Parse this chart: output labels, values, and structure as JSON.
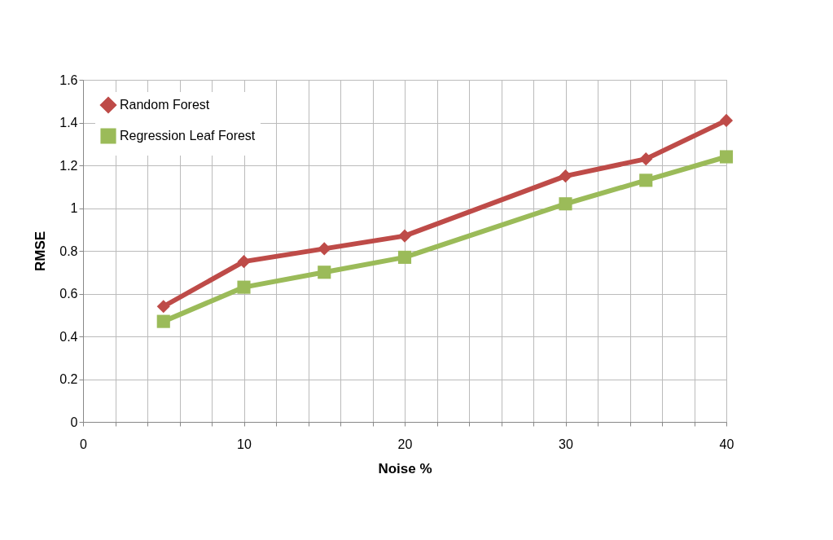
{
  "chart_data": {
    "type": "line",
    "xlabel": "Noise %",
    "ylabel": "RMSE",
    "x": [
      5,
      10,
      15,
      20,
      30,
      35,
      40
    ],
    "series": [
      {
        "name": "Random Forest",
        "color": "#be4b48",
        "marker": "diamond",
        "values": [
          0.54,
          0.75,
          0.81,
          0.87,
          1.15,
          1.23,
          1.41
        ]
      },
      {
        "name": "Regression Leaf Forest",
        "color": "#9bbb59",
        "marker": "square",
        "values": [
          0.47,
          0.63,
          0.7,
          0.77,
          1.02,
          1.13,
          1.24
        ]
      }
    ],
    "xlim": [
      0,
      40
    ],
    "xticks": [
      0,
      {
        "value": 2,
        "label": null
      },
      {
        "value": 4,
        "label": null
      },
      {
        "value": 6,
        "label": null
      },
      {
        "value": 8,
        "label": null
      },
      10,
      {
        "value": 12,
        "label": null
      },
      {
        "value": 14,
        "label": null
      },
      {
        "value": 16,
        "label": null
      },
      {
        "value": 18,
        "label": null
      },
      20,
      {
        "value": 22,
        "label": null
      },
      {
        "value": 24,
        "label": null
      },
      {
        "value": 26,
        "label": null
      },
      {
        "value": 28,
        "label": null
      },
      30,
      {
        "value": 32,
        "label": null
      },
      {
        "value": 34,
        "label": null
      },
      {
        "value": 36,
        "label": null
      },
      {
        "value": 38,
        "label": null
      },
      40
    ],
    "ylim": [
      0,
      1.6
    ],
    "yticks": [
      0,
      0.2,
      0.4,
      0.6,
      0.8,
      1,
      1.2,
      1.4,
      1.6
    ],
    "grid": true,
    "legend": "top left",
    "line_style": "solid"
  }
}
